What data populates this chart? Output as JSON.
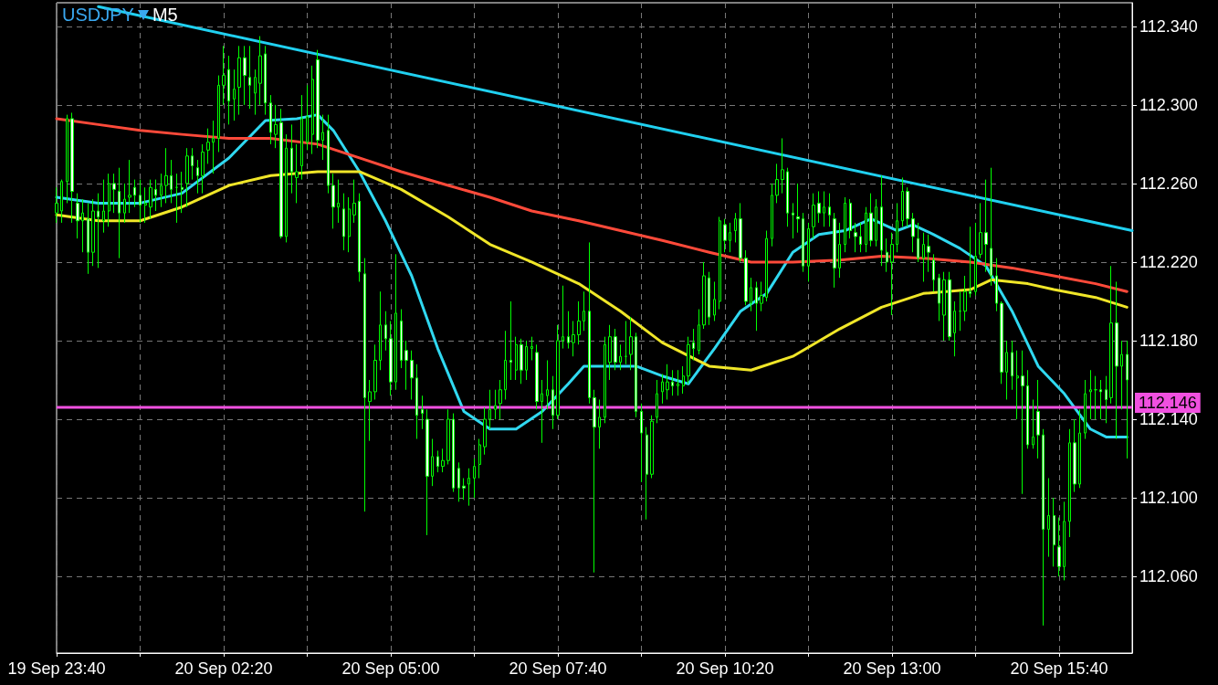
{
  "chart_data": {
    "type": "candlestick",
    "title": "USDJPY",
    "subtitle": "M5",
    "color": "#00ff00",
    "grid": true,
    "marker": "none",
    "xlim": [
      "--09-19T23:40",
      "--09-20T16:50"
    ],
    "ylim": [
      112.021,
      112.352
    ],
    "xticks": [
      {
        "value": "--09-19T23:40",
        "label": "19 Sep 23:40"
      },
      {
        "value": "--09-20T01:00",
        "label": null
      },
      {
        "value": "--09-20T02:20",
        "label": "20 Sep 02:20"
      },
      {
        "value": "--09-20T03:40",
        "label": null
      },
      {
        "value": "--09-20T05:00",
        "label": "20 Sep 05:00"
      },
      {
        "value": "--09-20T06:20",
        "label": null
      },
      {
        "value": "--09-20T07:40",
        "label": "20 Sep 07:40"
      },
      {
        "value": "--09-20T09:00",
        "label": null
      },
      {
        "value": "--09-20T10:20",
        "label": "20 Sep 10:20"
      },
      {
        "value": "--09-20T11:40",
        "label": null
      },
      {
        "value": "--09-20T13:00",
        "label": "20 Sep 13:00"
      },
      {
        "value": "--09-20T14:20",
        "label": null
      },
      {
        "value": "--09-20T15:40",
        "label": "20 Sep 15:40"
      }
    ],
    "yticks": [
      {
        "value": 112.06,
        "label": "112.060"
      },
      {
        "value": 112.1,
        "label": "112.100"
      },
      {
        "value": 112.14,
        "label": "112.140"
      },
      {
        "value": 112.18,
        "label": "112.180"
      },
      {
        "value": 112.22,
        "label": "112.220"
      },
      {
        "value": 112.26,
        "label": "112.260"
      },
      {
        "value": 112.3,
        "label": "112.300"
      },
      {
        "value": 112.34,
        "label": "112.340"
      }
    ],
    "ref_lines": [
      {
        "axis": "y",
        "value": 112.146,
        "label": "112.146",
        "color": "#f050e0"
      }
    ],
    "x": [
      "--09-19T23:40",
      "--09-19T23:45",
      "--09-19T23:50",
      "--09-19T23:55",
      "--09-20T00:00",
      "--09-20T00:05",
      "--09-20T00:10",
      "--09-20T00:15",
      "--09-20T00:20",
      "--09-20T00:25",
      "--09-20T00:30",
      "--09-20T00:35",
      "--09-20T00:40",
      "--09-20T00:45",
      "--09-20T00:50",
      "--09-20T00:55",
      "--09-20T01:00",
      "--09-20T01:05",
      "--09-20T01:10",
      "--09-20T01:15",
      "--09-20T01:20",
      "--09-20T01:25",
      "--09-20T01:30",
      "--09-20T01:35",
      "--09-20T01:40",
      "--09-20T01:45",
      "--09-20T01:50",
      "--09-20T01:55",
      "--09-20T02:00",
      "--09-20T02:05",
      "--09-20T02:10",
      "--09-20T02:15",
      "--09-20T02:20",
      "--09-20T02:25",
      "--09-20T02:30",
      "--09-20T02:35",
      "--09-20T02:40",
      "--09-20T02:45",
      "--09-20T02:50",
      "--09-20T02:55",
      "--09-20T03:00",
      "--09-20T03:05",
      "--09-20T03:10",
      "--09-20T03:15",
      "--09-20T03:20",
      "--09-20T03:25",
      "--09-20T03:30",
      "--09-20T03:35",
      "--09-20T03:40",
      "--09-20T03:45",
      "--09-20T03:50",
      "--09-20T03:55",
      "--09-20T04:00",
      "--09-20T04:05",
      "--09-20T04:10",
      "--09-20T04:15",
      "--09-20T04:20",
      "--09-20T04:25",
      "--09-20T04:30",
      "--09-20T04:35",
      "--09-20T04:40",
      "--09-20T04:45",
      "--09-20T04:50",
      "--09-20T04:55",
      "--09-20T05:00",
      "--09-20T05:05",
      "--09-20T05:10",
      "--09-20T05:15",
      "--09-20T05:20",
      "--09-20T05:25",
      "--09-20T05:30",
      "--09-20T05:35",
      "--09-20T05:40",
      "--09-20T05:45",
      "--09-20T05:50",
      "--09-20T05:55",
      "--09-20T06:00",
      "--09-20T06:05",
      "--09-20T06:10",
      "--09-20T06:15",
      "--09-20T06:20",
      "--09-20T06:25",
      "--09-20T06:30",
      "--09-20T06:35",
      "--09-20T06:40",
      "--09-20T06:45",
      "--09-20T06:50",
      "--09-20T06:55",
      "--09-20T07:00",
      "--09-20T07:05",
      "--09-20T07:10",
      "--09-20T07:15",
      "--09-20T07:20",
      "--09-20T07:25",
      "--09-20T07:30",
      "--09-20T07:35",
      "--09-20T07:40",
      "--09-20T07:45",
      "--09-20T07:50",
      "--09-20T07:55",
      "--09-20T08:00",
      "--09-20T08:05",
      "--09-20T08:10",
      "--09-20T08:15",
      "--09-20T08:20",
      "--09-20T08:25",
      "--09-20T08:30",
      "--09-20T08:35",
      "--09-20T08:40",
      "--09-20T08:45",
      "--09-20T08:50",
      "--09-20T08:55",
      "--09-20T09:00",
      "--09-20T09:05",
      "--09-20T09:10",
      "--09-20T09:15",
      "--09-20T09:20",
      "--09-20T09:25",
      "--09-20T09:30",
      "--09-20T09:35",
      "--09-20T09:40",
      "--09-20T09:45",
      "--09-20T09:50",
      "--09-20T09:55",
      "--09-20T10:00",
      "--09-20T10:05",
      "--09-20T10:10",
      "--09-20T10:15",
      "--09-20T10:20",
      "--09-20T10:25",
      "--09-20T10:30",
      "--09-20T10:35",
      "--09-20T10:40",
      "--09-20T10:45",
      "--09-20T10:50",
      "--09-20T10:55",
      "--09-20T11:00",
      "--09-20T11:05",
      "--09-20T11:10",
      "--09-20T11:15",
      "--09-20T11:20",
      "--09-20T11:25",
      "--09-20T11:30",
      "--09-20T11:35",
      "--09-20T11:40",
      "--09-20T11:45",
      "--09-20T11:50",
      "--09-20T11:55",
      "--09-20T12:00",
      "--09-20T12:05",
      "--09-20T12:10",
      "--09-20T12:15",
      "--09-20T12:20",
      "--09-20T12:25",
      "--09-20T12:30",
      "--09-20T12:35",
      "--09-20T12:40",
      "--09-20T12:45",
      "--09-20T12:50",
      "--09-20T12:55",
      "--09-20T13:00",
      "--09-20T13:05",
      "--09-20T13:10",
      "--09-20T13:15",
      "--09-20T13:20",
      "--09-20T13:25",
      "--09-20T13:30",
      "--09-20T13:35",
      "--09-20T13:40",
      "--09-20T13:45",
      "--09-20T13:50",
      "--09-20T13:55",
      "--09-20T14:00",
      "--09-20T14:05",
      "--09-20T14:10",
      "--09-20T14:15",
      "--09-20T14:20",
      "--09-20T14:25",
      "--09-20T14:30",
      "--09-20T14:35",
      "--09-20T14:40",
      "--09-20T14:45",
      "--09-20T14:50",
      "--09-20T14:55",
      "--09-20T15:00",
      "--09-20T15:05",
      "--09-20T15:10",
      "--09-20T15:15",
      "--09-20T15:20",
      "--09-20T15:25",
      "--09-20T15:30",
      "--09-20T15:35",
      "--09-20T15:40",
      "--09-20T15:45",
      "--09-20T15:50",
      "--09-20T15:55",
      "--09-20T16:00",
      "--09-20T16:05",
      "--09-20T16:10",
      "--09-20T16:15",
      "--09-20T16:20",
      "--09-20T16:25",
      "--09-20T16:30",
      "--09-20T16:35",
      "--09-20T16:40",
      "--09-20T16:45"
    ],
    "ohlc": [
      [
        112.245,
        112.258,
        112.24,
        112.25
      ],
      [
        112.246,
        112.262,
        112.24,
        112.261
      ],
      [
        112.261,
        112.295,
        112.25,
        112.293
      ],
      [
        112.293,
        112.296,
        112.24,
        112.256
      ],
      [
        112.25,
        112.255,
        112.232,
        112.241
      ],
      [
        112.241,
        112.252,
        112.225,
        112.245
      ],
      [
        112.242,
        112.25,
        112.214,
        112.225
      ],
      [
        112.225,
        112.252,
        112.218,
        112.246
      ],
      [
        112.246,
        112.255,
        112.217,
        112.243
      ],
      [
        112.241,
        112.262,
        112.235,
        112.246
      ],
      [
        112.246,
        112.265,
        112.238,
        112.26
      ],
      [
        112.26,
        112.265,
        112.245,
        112.257
      ],
      [
        112.256,
        112.268,
        112.222,
        112.245
      ],
      [
        112.245,
        112.26,
        112.24,
        112.252
      ],
      [
        112.253,
        112.272,
        112.245,
        112.254
      ],
      [
        112.258,
        112.262,
        112.248,
        112.254
      ],
      [
        112.254,
        112.262,
        112.24,
        112.249
      ],
      [
        112.249,
        112.258,
        112.24,
        112.25
      ],
      [
        112.248,
        112.262,
        112.242,
        112.258
      ],
      [
        112.257,
        112.262,
        112.246,
        112.254
      ],
      [
        112.254,
        112.265,
        112.248,
        112.259
      ],
      [
        112.259,
        112.278,
        112.25,
        112.264
      ],
      [
        112.264,
        112.272,
        112.25,
        112.257
      ],
      [
        112.258,
        112.265,
        112.24,
        112.258
      ],
      [
        112.258,
        112.266,
        112.245,
        112.257
      ],
      [
        112.26,
        112.278,
        112.248,
        112.274
      ],
      [
        112.274,
        112.278,
        112.262,
        112.269
      ],
      [
        112.268,
        112.272,
        112.255,
        112.264
      ],
      [
        112.264,
        112.28,
        112.255,
        112.276
      ],
      [
        112.277,
        112.288,
        112.27,
        112.281
      ],
      [
        112.281,
        112.292,
        112.265,
        112.283
      ],
      [
        112.283,
        112.315,
        112.276,
        112.31
      ],
      [
        112.31,
        112.33,
        112.3,
        112.315
      ],
      [
        112.318,
        112.325,
        112.29,
        112.302
      ],
      [
        112.303,
        112.318,
        112.292,
        112.308
      ],
      [
        112.309,
        112.33,
        112.295,
        112.324
      ],
      [
        112.324,
        112.33,
        112.3,
        112.315
      ],
      [
        112.314,
        112.33,
        112.298,
        112.31
      ],
      [
        112.306,
        112.318,
        112.295,
        112.314
      ],
      [
        112.311,
        112.335,
        112.3,
        112.325
      ],
      [
        112.326,
        112.33,
        112.295,
        112.301
      ],
      [
        112.301,
        112.305,
        112.28,
        112.286
      ],
      [
        112.285,
        112.3,
        112.278,
        112.29
      ],
      [
        112.291,
        112.298,
        112.232,
        112.233
      ],
      [
        112.233,
        112.285,
        112.23,
        112.278
      ],
      [
        112.278,
        112.29,
        112.255,
        112.266
      ],
      [
        112.263,
        112.28,
        112.25,
        112.266
      ],
      [
        112.269,
        112.305,
        112.262,
        112.293
      ],
      [
        112.281,
        112.31,
        112.277,
        112.294
      ],
      [
        112.285,
        112.32,
        112.275,
        112.313
      ],
      [
        112.323,
        112.328,
        112.278,
        112.282
      ],
      [
        112.282,
        112.295,
        112.272,
        112.286
      ],
      [
        112.287,
        112.295,
        112.255,
        112.259
      ],
      [
        112.259,
        112.265,
        112.237,
        112.248
      ],
      [
        112.248,
        112.262,
        112.24,
        112.25
      ],
      [
        112.247,
        112.255,
        112.226,
        112.233
      ],
      [
        112.233,
        112.253,
        112.225,
        112.247
      ],
      [
        112.244,
        112.262,
        112.24,
        112.25
      ],
      [
        112.251,
        112.255,
        112.21,
        112.215
      ],
      [
        112.214,
        112.222,
        112.093,
        112.151
      ],
      [
        112.149,
        112.16,
        112.129,
        112.154
      ],
      [
        112.154,
        112.178,
        112.15,
        112.17
      ],
      [
        112.17,
        112.205,
        112.165,
        112.188
      ],
      [
        112.188,
        112.195,
        112.175,
        112.181
      ],
      [
        112.181,
        112.19,
        112.152,
        112.159
      ],
      [
        112.159,
        112.224,
        112.155,
        112.194
      ],
      [
        112.19,
        112.196,
        112.166,
        112.17
      ],
      [
        112.175,
        112.18,
        112.155,
        112.17
      ],
      [
        112.17,
        112.175,
        112.15,
        112.161
      ],
      [
        112.161,
        112.168,
        112.13,
        112.142
      ],
      [
        112.145,
        112.152,
        112.135,
        112.143
      ],
      [
        112.14,
        112.145,
        112.081,
        112.111
      ],
      [
        112.111,
        112.13,
        112.106,
        112.121
      ],
      [
        112.121,
        112.124,
        112.113,
        112.116
      ],
      [
        112.116,
        112.125,
        112.113,
        112.119
      ],
      [
        112.119,
        112.145,
        112.117,
        112.14
      ],
      [
        112.14,
        112.143,
        112.103,
        112.105
      ],
      [
        112.115,
        112.118,
        112.098,
        112.105
      ],
      [
        112.106,
        112.11,
        112.099,
        112.105
      ],
      [
        112.107,
        112.115,
        112.096,
        112.11
      ],
      [
        112.11,
        112.12,
        112.1,
        112.116
      ],
      [
        112.117,
        112.13,
        112.11,
        112.127
      ],
      [
        112.126,
        112.146,
        112.122,
        112.14
      ],
      [
        112.14,
        112.155,
        112.135,
        112.145
      ],
      [
        112.145,
        112.155,
        112.14,
        112.147
      ],
      [
        112.148,
        112.16,
        112.14,
        112.155
      ],
      [
        112.155,
        112.185,
        112.15,
        112.17
      ],
      [
        112.17,
        112.2,
        112.16,
        112.169
      ],
      [
        112.165,
        112.182,
        112.16,
        112.178
      ],
      [
        112.178,
        112.181,
        112.158,
        112.165
      ],
      [
        112.165,
        112.18,
        112.16,
        112.177
      ],
      [
        112.176,
        112.182,
        112.17,
        112.177
      ],
      [
        112.174,
        112.178,
        112.145,
        112.149
      ],
      [
        112.149,
        112.16,
        112.128,
        112.153
      ],
      [
        112.152,
        112.17,
        112.145,
        112.155
      ],
      [
        112.155,
        112.162,
        112.135,
        112.142
      ],
      [
        112.142,
        112.188,
        112.14,
        112.18
      ],
      [
        112.18,
        112.208,
        112.176,
        112.182
      ],
      [
        112.182,
        112.195,
        112.176,
        112.179
      ],
      [
        112.179,
        112.19,
        112.172,
        112.183
      ],
      [
        112.183,
        112.2,
        112.178,
        112.19
      ],
      [
        112.19,
        112.205,
        112.185,
        112.195
      ],
      [
        112.195,
        112.23,
        112.148,
        112.151
      ],
      [
        112.151,
        112.155,
        112.062,
        112.136
      ],
      [
        112.136,
        112.15,
        112.125,
        112.141
      ],
      [
        112.141,
        112.182,
        112.138,
        112.178
      ],
      [
        112.169,
        112.188,
        112.16,
        112.182
      ],
      [
        112.182,
        112.186,
        112.165,
        112.169
      ],
      [
        112.169,
        112.178,
        112.165,
        112.172
      ],
      [
        112.172,
        112.19,
        112.168,
        112.172
      ],
      [
        112.173,
        112.192,
        112.165,
        112.182
      ],
      [
        112.182,
        112.184,
        112.141,
        112.144
      ],
      [
        112.144,
        112.148,
        112.108,
        112.133
      ],
      [
        112.132,
        112.136,
        112.089,
        112.112
      ],
      [
        112.112,
        112.142,
        112.11,
        112.139
      ],
      [
        112.141,
        112.16,
        112.138,
        112.153
      ],
      [
        112.154,
        112.163,
        112.148,
        112.159
      ],
      [
        112.155,
        112.168,
        112.15,
        112.159
      ],
      [
        112.159,
        112.165,
        112.152,
        112.157
      ],
      [
        112.157,
        112.165,
        112.152,
        112.158
      ],
      [
        112.157,
        112.167,
        112.153,
        112.162
      ],
      [
        112.162,
        112.182,
        112.158,
        112.178
      ],
      [
        112.179,
        112.186,
        112.17,
        112.176
      ],
      [
        112.175,
        112.196,
        112.173,
        112.188
      ],
      [
        112.188,
        112.22,
        112.186,
        112.213
      ],
      [
        112.212,
        112.215,
        112.188,
        112.192
      ],
      [
        112.193,
        112.21,
        112.19,
        112.201
      ],
      [
        112.2,
        112.243,
        112.196,
        112.241
      ],
      [
        112.239,
        112.242,
        112.225,
        112.231
      ],
      [
        112.231,
        112.24,
        112.225,
        112.235
      ],
      [
        112.236,
        112.245,
        112.23,
        112.242
      ],
      [
        112.242,
        112.25,
        112.22,
        112.222
      ],
      [
        112.222,
        112.226,
        112.198,
        112.2
      ],
      [
        112.199,
        112.212,
        112.195,
        112.207
      ],
      [
        112.207,
        112.21,
        112.185,
        112.199
      ],
      [
        112.199,
        112.21,
        112.195,
        112.203
      ],
      [
        112.202,
        112.236,
        112.2,
        112.232
      ],
      [
        112.232,
        112.26,
        112.228,
        112.254
      ],
      [
        112.254,
        112.27,
        112.25,
        112.262
      ],
      [
        112.262,
        112.283,
        112.255,
        112.267
      ],
      [
        112.266,
        112.268,
        112.238,
        112.245
      ],
      [
        112.245,
        112.25,
        112.232,
        112.244
      ],
      [
        112.243,
        112.26,
        112.235,
        112.242
      ],
      [
        112.242,
        112.245,
        112.215,
        112.218
      ],
      [
        112.218,
        112.24,
        112.21,
        112.237
      ],
      [
        112.238,
        112.255,
        112.232,
        112.249
      ],
      [
        112.25,
        112.256,
        112.24,
        112.245
      ],
      [
        112.245,
        112.256,
        112.238,
        112.248
      ],
      [
        112.248,
        112.255,
        112.238,
        112.244
      ],
      [
        112.242,
        112.245,
        112.207,
        112.217
      ],
      [
        112.217,
        112.24,
        112.212,
        112.229
      ],
      [
        112.229,
        112.253,
        112.225,
        112.25
      ],
      [
        112.25,
        112.252,
        112.232,
        112.236
      ],
      [
        112.235,
        112.24,
        112.225,
        112.233
      ],
      [
        112.233,
        112.24,
        112.225,
        112.229
      ],
      [
        112.229,
        112.248,
        112.225,
        112.245
      ],
      [
        112.245,
        112.255,
        112.228,
        112.231
      ],
      [
        112.231,
        112.252,
        112.228,
        112.248
      ],
      [
        112.248,
        112.264,
        112.218,
        112.226
      ],
      [
        112.225,
        112.232,
        112.215,
        112.22
      ],
      [
        112.22,
        112.235,
        112.193,
        112.229
      ],
      [
        112.229,
        112.25,
        112.225,
        112.241
      ],
      [
        112.241,
        112.263,
        112.238,
        112.256
      ],
      [
        112.256,
        112.258,
        112.238,
        112.242
      ],
      [
        112.242,
        112.245,
        112.225,
        112.233
      ],
      [
        112.232,
        112.24,
        112.22,
        112.222
      ],
      [
        112.222,
        112.235,
        112.21,
        112.229
      ],
      [
        112.228,
        112.234,
        112.215,
        112.225
      ],
      [
        112.221,
        112.224,
        112.205,
        112.211
      ],
      [
        112.212,
        112.214,
        112.19,
        112.199
      ],
      [
        112.193,
        112.215,
        112.18,
        112.211
      ],
      [
        112.211,
        112.215,
        112.18,
        112.182
      ],
      [
        112.184,
        112.2,
        112.172,
        112.195
      ],
      [
        112.195,
        112.205,
        112.185,
        112.195
      ],
      [
        112.195,
        112.213,
        112.19,
        112.205
      ],
      [
        112.205,
        112.238,
        112.202,
        112.204
      ],
      [
        112.205,
        112.24,
        112.203,
        112.223
      ],
      [
        112.224,
        112.25,
        112.222,
        112.235
      ],
      [
        112.235,
        112.262,
        112.215,
        112.229
      ],
      [
        112.227,
        112.268,
        112.208,
        112.213
      ],
      [
        112.213,
        112.222,
        112.195,
        112.199
      ],
      [
        112.199,
        112.2,
        112.158,
        112.164
      ],
      [
        112.164,
        112.18,
        112.15,
        112.174
      ],
      [
        112.174,
        112.18,
        112.155,
        112.162
      ],
      [
        112.161,
        112.175,
        112.14,
        112.162
      ],
      [
        112.162,
        112.175,
        112.102,
        112.157
      ],
      [
        112.157,
        112.165,
        112.125,
        112.127
      ],
      [
        112.127,
        112.15,
        112.125,
        112.131
      ],
      [
        112.144,
        112.16,
        112.12,
        112.132
      ],
      [
        112.132,
        112.135,
        112.035,
        112.084
      ],
      [
        112.084,
        112.11,
        112.07,
        112.091
      ],
      [
        112.091,
        112.1,
        112.065,
        112.076
      ],
      [
        112.075,
        112.09,
        112.06,
        112.065
      ],
      [
        112.065,
        112.098,
        112.058,
        112.088
      ],
      [
        112.088,
        112.135,
        112.08,
        112.128
      ],
      [
        112.128,
        112.14,
        112.103,
        112.107
      ],
      [
        112.107,
        112.145,
        112.105,
        112.133
      ],
      [
        112.133,
        112.16,
        112.13,
        112.153
      ],
      [
        112.154,
        112.165,
        112.14,
        112.155
      ],
      [
        112.155,
        112.162,
        112.14,
        112.155
      ],
      [
        112.155,
        112.16,
        112.14,
        112.154
      ],
      [
        112.155,
        112.162,
        112.138,
        112.15
      ],
      [
        112.151,
        112.218,
        112.148,
        112.189
      ],
      [
        112.189,
        112.21,
        112.13,
        112.167
      ],
      [
        112.167,
        112.18,
        112.145,
        112.173
      ],
      [
        112.173,
        112.18,
        112.12,
        112.16
      ]
    ],
    "series": [
      {
        "type": "line",
        "color": "#30d8f0",
        "x": [
          "--09-19T23:40",
          "--09-20T00:20",
          "--09-20T01:00",
          "--09-20T01:40",
          "--09-20T02:25",
          "--09-20T03:00",
          "--09-20T03:30",
          "--09-20T03:50",
          "--09-20T04:05",
          "--09-20T04:30",
          "--09-20T04:55",
          "--09-20T05:20",
          "--09-20T05:45",
          "--09-20T06:10",
          "--09-20T06:35",
          "--09-20T07:00",
          "--09-20T07:25",
          "--09-20T07:50",
          "--09-20T08:05",
          "--09-20T08:30",
          "--09-20T08:55",
          "--09-20T09:20",
          "--09-20T09:45",
          "--09-20T10:10",
          "--09-20T10:35",
          "--09-20T11:00",
          "--09-20T11:25",
          "--09-20T11:50",
          "--09-20T12:15",
          "--09-20T12:40",
          "--09-20T13:05",
          "--09-20T13:20",
          "--09-20T13:40",
          "--09-20T14:05",
          "--09-20T14:30",
          "--09-20T14:55",
          "--09-20T15:20",
          "--09-20T15:45",
          "--09-20T16:10",
          "--09-20T16:25",
          "--09-20T16:45"
        ],
        "values": [
          112.253,
          112.25,
          112.25,
          112.255,
          112.273,
          112.292,
          112.293,
          112.295,
          112.287,
          112.266,
          112.241,
          112.213,
          112.176,
          112.144,
          112.135,
          112.135,
          112.144,
          112.158,
          112.167,
          112.167,
          112.167,
          112.162,
          112.158,
          112.176,
          112.195,
          112.204,
          112.225,
          112.234,
          112.236,
          112.242,
          112.236,
          112.239,
          112.234,
          112.227,
          112.218,
          112.195,
          112.167,
          112.153,
          112.135,
          112.131,
          112.131
        ]
      },
      {
        "type": "line",
        "color": "#ff4a3a",
        "x": [
          "--09-19T23:40",
          "--09-20T00:20",
          "--09-20T01:00",
          "--09-20T01:40",
          "--09-20T02:25",
          "--09-20T03:05",
          "--09-20T03:50",
          "--09-20T04:30",
          "--09-20T05:10",
          "--09-20T05:55",
          "--09-20T06:35",
          "--09-20T07:15",
          "--09-20T08:00",
          "--09-20T08:40",
          "--09-20T09:20",
          "--09-20T10:05",
          "--09-20T10:45",
          "--09-20T11:25",
          "--09-20T12:10",
          "--09-20T12:50",
          "--09-20T13:30",
          "--09-20T14:15",
          "--09-20T14:55",
          "--09-20T15:35",
          "--09-20T16:15",
          "--09-20T16:45"
        ],
        "values": [
          112.293,
          112.29,
          112.287,
          112.285,
          112.283,
          112.283,
          112.28,
          112.273,
          112.266,
          112.259,
          112.253,
          112.246,
          112.241,
          112.236,
          112.231,
          112.225,
          112.22,
          112.22,
          112.221,
          112.223,
          112.222,
          112.22,
          112.217,
          112.213,
          112.209,
          112.205
        ]
      },
      {
        "type": "line",
        "color": "#f0e628",
        "x": [
          "--09-19T23:40",
          "--09-20T00:20",
          "--09-20T01:00",
          "--09-20T01:40",
          "--09-20T02:25",
          "--09-20T03:05",
          "--09-20T03:50",
          "--09-20T04:30",
          "--09-20T05:10",
          "--09-20T05:55",
          "--09-20T06:35",
          "--09-20T07:15",
          "--09-20T08:00",
          "--09-20T08:40",
          "--09-20T09:20",
          "--09-20T10:05",
          "--09-20T10:45",
          "--09-20T11:25",
          "--09-20T12:10",
          "--09-20T12:50",
          "--09-20T13:30",
          "--09-20T14:15",
          "--09-20T14:35",
          "--09-20T15:10",
          "--09-20T15:35",
          "--09-20T16:15",
          "--09-20T16:45"
        ],
        "values": [
          112.244,
          112.241,
          112.241,
          112.248,
          112.259,
          112.264,
          112.266,
          112.266,
          112.257,
          112.243,
          112.229,
          112.22,
          112.209,
          112.195,
          112.179,
          112.167,
          112.165,
          112.172,
          112.186,
          112.197,
          112.204,
          112.206,
          112.211,
          112.209,
          112.206,
          112.202,
          112.197
        ]
      },
      {
        "type": "line",
        "color": "#20d0f0",
        "x": [
          "--09-20T00:20",
          "--09-20T16:50"
        ],
        "values": [
          112.35,
          112.236
        ]
      }
    ]
  }
}
